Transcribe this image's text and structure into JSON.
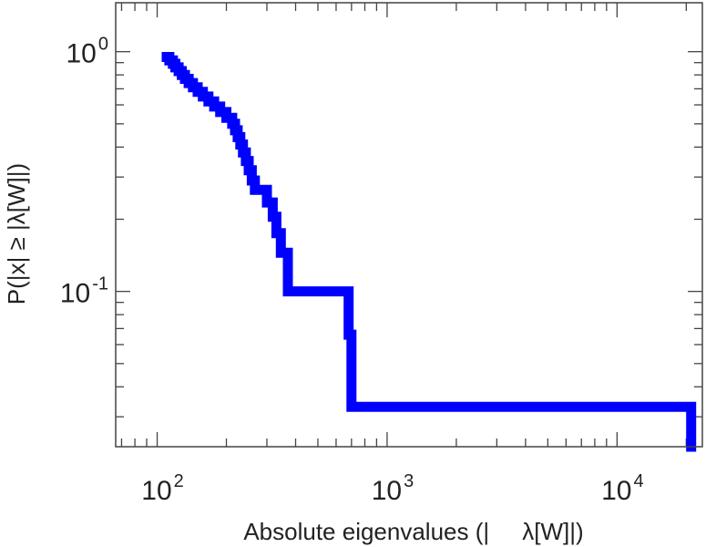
{
  "chart_data": {
    "type": "line",
    "xscale": "log",
    "yscale": "log",
    "xlim": [
      66,
      23500
    ],
    "ylim": [
      0.0225,
      1.6
    ],
    "xticks": [
      {
        "base": "10",
        "exp": "2",
        "value": 100
      },
      {
        "base": "10",
        "exp": "3",
        "value": 1000
      },
      {
        "base": "10",
        "exp": "4",
        "value": 10000
      }
    ],
    "yticks": [
      {
        "base": "10",
        "exp": "0",
        "value": 1
      },
      {
        "base": "10",
        "exp": "-1",
        "value": 0.1
      }
    ],
    "xlabel": "Absolute eigenvalues (|     λ[W]|)",
    "ylabel": "P(|x| ≥ |λ[W]|)",
    "grid": false,
    "line_color": "#0000ff",
    "series": [
      {
        "x": [
          110,
          113,
          117,
          120,
          124,
          128,
          132,
          137,
          143,
          150,
          158,
          167,
          177,
          188,
          200,
          212,
          218,
          224,
          230,
          236,
          243,
          250,
          258,
          266,
          280,
          300,
          318,
          330,
          345,
          370,
          450,
          680,
          700,
          720,
          21000
        ],
        "y": [
          0.95,
          0.92,
          0.89,
          0.86,
          0.83,
          0.8,
          0.77,
          0.74,
          0.71,
          0.68,
          0.65,
          0.62,
          0.59,
          0.56,
          0.53,
          0.5,
          0.47,
          0.44,
          0.41,
          0.38,
          0.35,
          0.32,
          0.29,
          0.265,
          0.265,
          0.235,
          0.205,
          0.175,
          0.145,
          0.1,
          0.1,
          0.066,
          0.033,
          0.033,
          0.024
        ]
      }
    ]
  }
}
